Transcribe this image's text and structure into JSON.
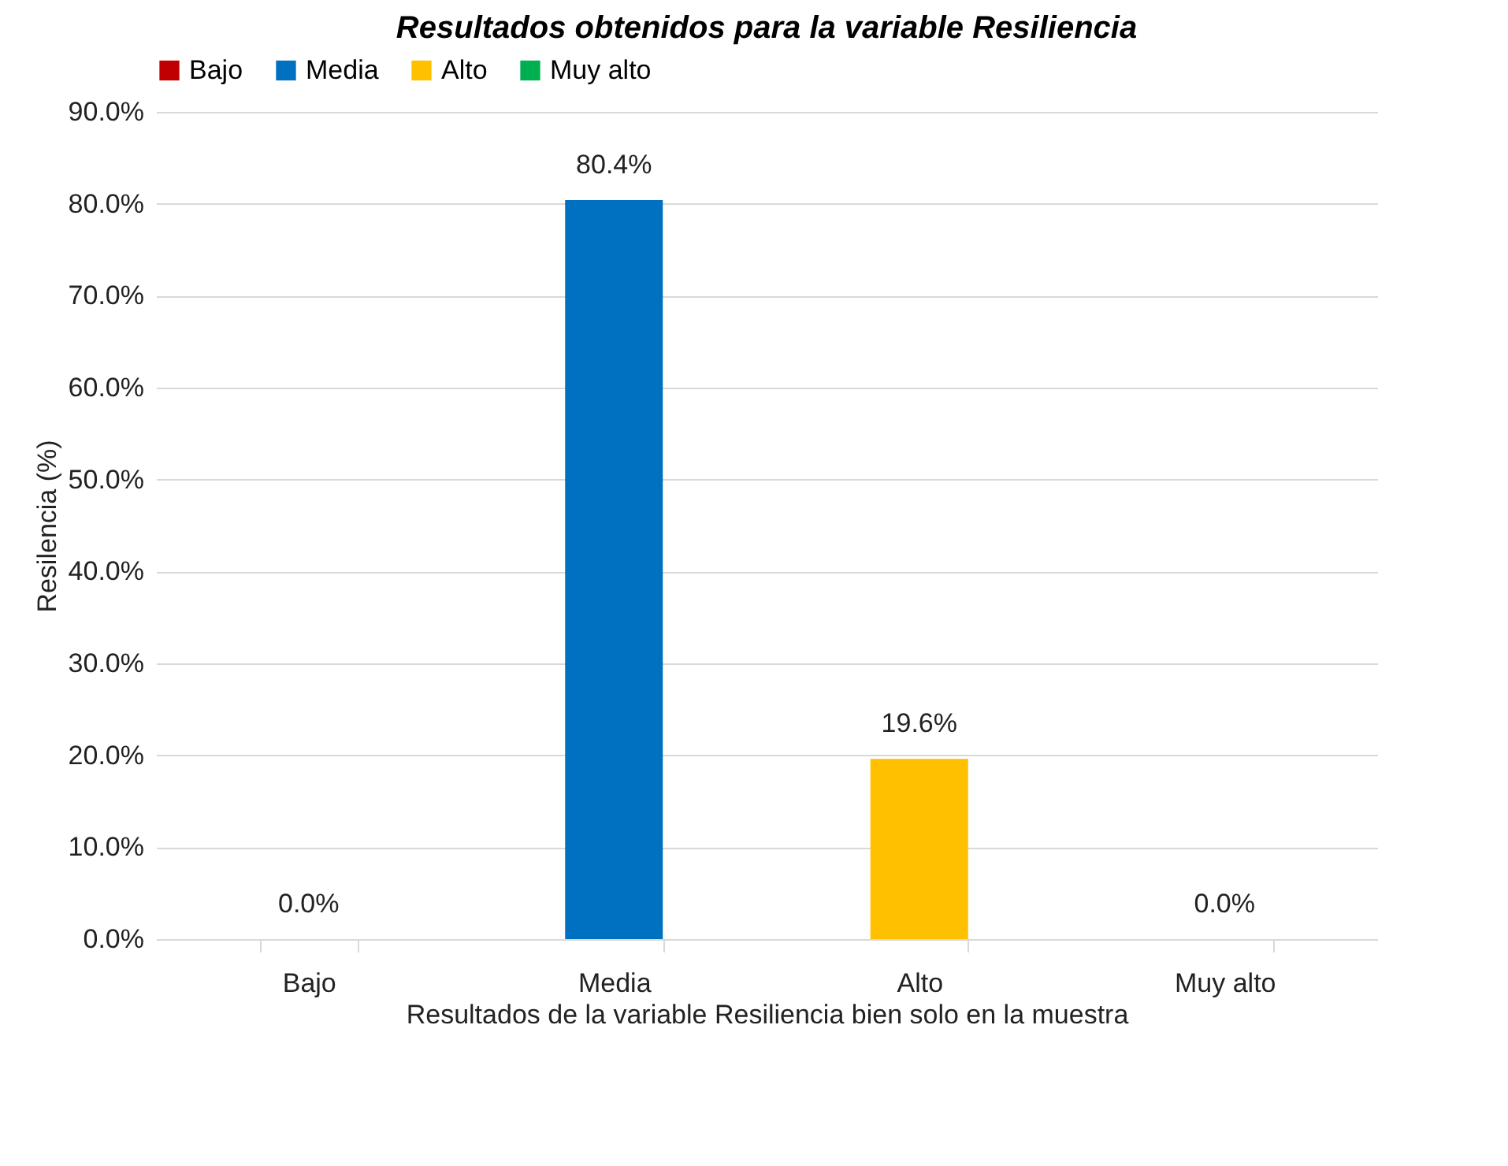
{
  "chart_data": {
    "type": "bar",
    "title": "Resultados obtenidos para la variable Resiliencia",
    "categories": [
      "Bajo",
      "Media",
      "Alto",
      "Muy alto"
    ],
    "series": [
      {
        "name": "Bajo",
        "color": "#c00000",
        "values": [
          0,
          null,
          null,
          null
        ],
        "value_labels": [
          "0.0%",
          null,
          null,
          null
        ]
      },
      {
        "name": "Media",
        "color": "#0070c0",
        "values": [
          null,
          80.4,
          null,
          null
        ],
        "value_labels": [
          null,
          "80.4%",
          null,
          null
        ]
      },
      {
        "name": "Alto",
        "color": "#ffc000",
        "values": [
          null,
          null,
          19.6,
          null
        ],
        "value_labels": [
          null,
          null,
          "19.6%",
          null
        ]
      },
      {
        "name": "Muy alto",
        "color": "#00b050",
        "values": [
          null,
          null,
          null,
          0
        ],
        "value_labels": [
          null,
          null,
          null,
          "0.0%"
        ]
      }
    ],
    "xlabel": "Resultados de la variable  Resiliencia bien solo en la muestra",
    "ylabel": "Resilencia (%)",
    "ylim": [
      0,
      90
    ],
    "yticks": [
      {
        "value": 0,
        "label": "0.0%"
      },
      {
        "value": 10,
        "label": "10.0%"
      },
      {
        "value": 20,
        "label": "20.0%"
      },
      {
        "value": 30,
        "label": "30.0%"
      },
      {
        "value": 40,
        "label": "40.0%"
      },
      {
        "value": 50,
        "label": "50.0%"
      },
      {
        "value": 60,
        "label": "60.0%"
      },
      {
        "value": 70,
        "label": "70.0%"
      },
      {
        "value": 80,
        "label": "80.0%"
      },
      {
        "value": 90,
        "label": "90.0%"
      }
    ],
    "grid": "y",
    "legend": "top"
  }
}
